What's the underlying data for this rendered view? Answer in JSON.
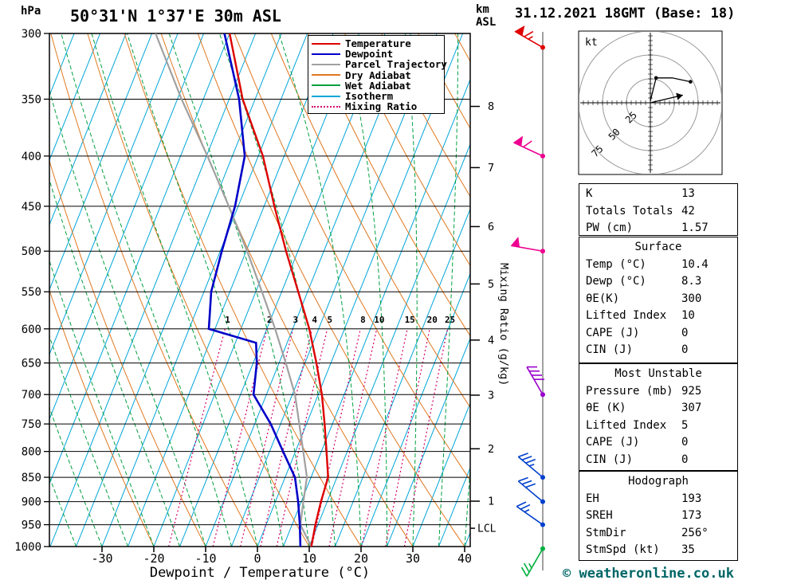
{
  "header": {
    "pressure_unit_label": "hPa",
    "station_title": "50°31'N 1°37'E 30m ASL",
    "km_axis_label_line1": "km",
    "km_axis_label_line2": "ASL",
    "datetime_title": "31.12.2021 18GMT (Base: 18)"
  },
  "legend": {
    "items": [
      {
        "label": "Temperature",
        "color": "#dd0000",
        "style": "solid"
      },
      {
        "label": "Dewpoint",
        "color": "#0000c8",
        "style": "solid"
      },
      {
        "label": "Parcel Trajectory",
        "color": "#a0a0a0",
        "style": "solid"
      },
      {
        "label": "Dry Adiabat",
        "color": "#e07820",
        "style": "solid"
      },
      {
        "label": "Wet Adiabat",
        "color": "#00a040",
        "style": "solid"
      },
      {
        "label": "Isotherm",
        "color": "#00a6d8",
        "style": "solid"
      },
      {
        "label": "Mixing Ratio",
        "color": "#d4006a",
        "style": "dotted"
      }
    ]
  },
  "axes": {
    "x_label": "Dewpoint / Temperature (°C)",
    "x_ticks_c": [
      -30,
      -20,
      -10,
      0,
      10,
      20,
      30,
      40
    ],
    "pressure_ticks_hpa": [
      300,
      350,
      400,
      450,
      500,
      550,
      600,
      650,
      700,
      750,
      800,
      850,
      900,
      950,
      1000
    ],
    "km_ticks": [
      {
        "label": "8",
        "p_hpa": 356
      },
      {
        "label": "7",
        "p_hpa": 411
      },
      {
        "label": "6",
        "p_hpa": 472
      },
      {
        "label": "5",
        "p_hpa": 540
      },
      {
        "label": "4",
        "p_hpa": 616
      },
      {
        "label": "3",
        "p_hpa": 701
      },
      {
        "label": "2",
        "p_hpa": 795
      },
      {
        "label": "1",
        "p_hpa": 899
      }
    ],
    "lcl": {
      "label": "LCL",
      "p_hpa": 958
    },
    "mixing_ratio_axis_label": "Mixing Ratio (g/kg)"
  },
  "chart_data": {
    "type": "line",
    "title": "Skew-T log-P sounding 50°31'N 1°37'E 30m ASL 31.12.2021 18GMT (Base: 18)",
    "x_axis": {
      "label": "Dewpoint / Temperature (°C)",
      "ticks_c": [
        -30,
        -20,
        -10,
        0,
        10,
        20,
        30,
        40
      ]
    },
    "y_axis": {
      "label": "hPa",
      "scale": "log",
      "ticks_hpa": [
        300,
        350,
        400,
        450,
        500,
        550,
        600,
        650,
        700,
        750,
        800,
        850,
        900,
        950,
        1000
      ]
    },
    "series": [
      {
        "name": "Temperature",
        "color": "#dd0000",
        "points_p_t": [
          [
            1000,
            10.4
          ],
          [
            950,
            9.5
          ],
          [
            900,
            8.8
          ],
          [
            850,
            8.3
          ],
          [
            800,
            6.0
          ],
          [
            750,
            3.5
          ],
          [
            700,
            0.7
          ],
          [
            650,
            -2.8
          ],
          [
            600,
            -6.8
          ],
          [
            550,
            -11.8
          ],
          [
            500,
            -17.3
          ],
          [
            450,
            -23.0
          ],
          [
            400,
            -29.1
          ],
          [
            350,
            -37.4
          ],
          [
            300,
            -45.0
          ]
        ]
      },
      {
        "name": "Dewpoint",
        "color": "#0000c8",
        "points_p_t": [
          [
            1000,
            8.3
          ],
          [
            950,
            6.5
          ],
          [
            900,
            4.4
          ],
          [
            850,
            1.9
          ],
          [
            800,
            -2.4
          ],
          [
            750,
            -6.9
          ],
          [
            700,
            -12.5
          ],
          [
            650,
            -14.3
          ],
          [
            620,
            -16.0
          ],
          [
            600,
            -26.2
          ],
          [
            550,
            -28.6
          ],
          [
            500,
            -29.7
          ],
          [
            450,
            -30.6
          ],
          [
            400,
            -32.6
          ],
          [
            350,
            -38.1
          ],
          [
            300,
            -46.0
          ]
        ]
      },
      {
        "name": "Parcel Trajectory",
        "color": "#a0a0a0",
        "points_p_t": [
          [
            1000,
            10.4
          ],
          [
            950,
            6.6
          ],
          [
            900,
            5.4
          ],
          [
            850,
            4.2
          ],
          [
            800,
            1.5
          ],
          [
            750,
            -1.4
          ],
          [
            700,
            -4.5
          ],
          [
            650,
            -8.7
          ],
          [
            600,
            -13.4
          ],
          [
            550,
            -18.8
          ],
          [
            500,
            -24.8
          ],
          [
            450,
            -31.8
          ],
          [
            400,
            -39.8
          ],
          [
            350,
            -49.2
          ],
          [
            300,
            -59.3
          ]
        ]
      }
    ],
    "mixing_ratio_lines_gkg": [
      1,
      2,
      3,
      4,
      5,
      8,
      10,
      15,
      20,
      25
    ],
    "wind_barbs": [
      {
        "p_hpa": 310,
        "speed_kt": 65,
        "dir_from_deg": 300,
        "color": "#e00000"
      },
      {
        "p_hpa": 400,
        "speed_kt": 60,
        "dir_from_deg": 295,
        "color": "#ee0090"
      },
      {
        "p_hpa": 500,
        "speed_kt": 50,
        "dir_from_deg": 280,
        "color": "#ee0090"
      },
      {
        "p_hpa": 700,
        "speed_kt": 40,
        "dir_from_deg": 330,
        "color": "#9900cc"
      },
      {
        "p_hpa": 850,
        "speed_kt": 35,
        "dir_from_deg": 310,
        "color": "#0040cc"
      },
      {
        "p_hpa": 900,
        "speed_kt": 30,
        "dir_from_deg": 310,
        "color": "#0040cc"
      },
      {
        "p_hpa": 950,
        "speed_kt": 25,
        "dir_from_deg": 305,
        "color": "#0040cc"
      },
      {
        "p_hpa": 1005,
        "speed_kt": 25,
        "dir_from_deg": 210,
        "color": "#00b040"
      }
    ]
  },
  "hodograph": {
    "unit_label": "kt",
    "rings_kt": [
      25,
      50,
      75
    ],
    "trace_uv_kt": [
      [
        0,
        2
      ],
      [
        6,
        26
      ],
      [
        23,
        26
      ],
      [
        42,
        22
      ]
    ],
    "trace_dot_indices": [
      1,
      3
    ],
    "storm_motion_uv_kt": [
      34,
      8
    ]
  },
  "tables": {
    "panels": [
      {
        "rows": [
          [
            "K",
            "13"
          ],
          [
            "Totals Totals",
            "42"
          ],
          [
            "PW (cm)",
            "1.57"
          ]
        ]
      },
      {
        "title": "Surface",
        "rows": [
          [
            "Temp (°C)",
            "10.4"
          ],
          [
            "Dewp (°C)",
            "8.3"
          ],
          [
            "θE(K)",
            "300"
          ],
          [
            "Lifted Index",
            "10"
          ],
          [
            "CAPE (J)",
            "0"
          ],
          [
            "CIN (J)",
            "0"
          ]
        ]
      },
      {
        "title": "Most Unstable",
        "rows": [
          [
            "Pressure (mb)",
            "925"
          ],
          [
            "θE (K)",
            "307"
          ],
          [
            "Lifted Index",
            "5"
          ],
          [
            "CAPE (J)",
            "0"
          ],
          [
            "CIN (J)",
            "0"
          ]
        ]
      },
      {
        "title": "Hodograph",
        "rows": [
          [
            "EH",
            "193"
          ],
          [
            "SREH",
            "173"
          ],
          [
            "StmDir",
            "256°"
          ],
          [
            "StmSpd (kt)",
            "35"
          ]
        ]
      }
    ]
  },
  "footer": {
    "copyright": "© weatheronline.co.uk"
  }
}
